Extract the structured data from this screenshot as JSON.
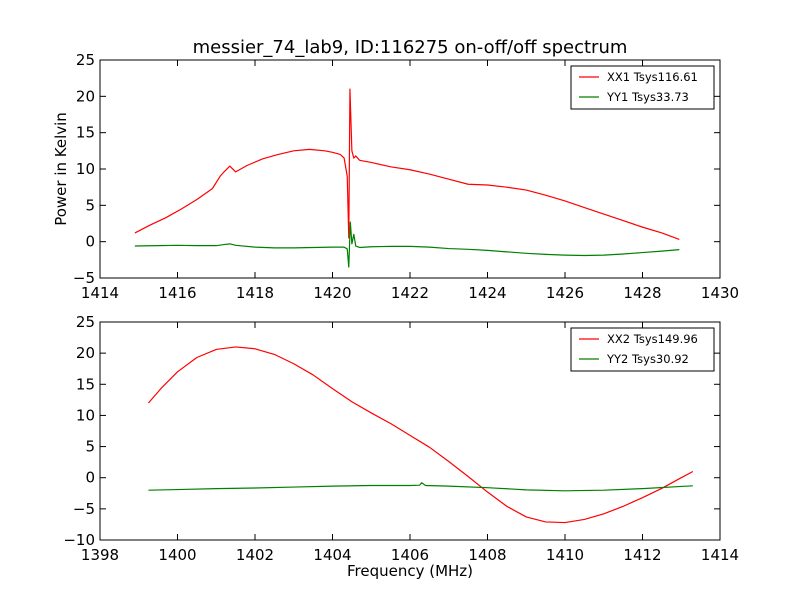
{
  "chart_data": [
    {
      "type": "line",
      "title": "messier_74_lab9, ID:116275 on-off/off spectrum",
      "xlabel": "",
      "ylabel": "Power in Kelvin",
      "xlim": [
        1414,
        1430
      ],
      "ylim": [
        -5,
        25
      ],
      "xticks": [
        1414,
        1416,
        1418,
        1420,
        1422,
        1424,
        1426,
        1428,
        1430
      ],
      "yticks": [
        -5,
        0,
        5,
        10,
        15,
        20,
        25
      ],
      "legend_position": "top-right",
      "grid": false,
      "series": [
        {
          "name": "XX1 Tsys116.61",
          "color": "#ff0000",
          "x": [
            1414.9,
            1415.3,
            1415.7,
            1416.1,
            1416.5,
            1416.9,
            1417.1,
            1417.2,
            1417.35,
            1417.5,
            1417.8,
            1418.2,
            1418.6,
            1419.0,
            1419.4,
            1419.8,
            1420.0,
            1420.2,
            1420.3,
            1420.38,
            1420.42,
            1420.45,
            1420.5,
            1420.55,
            1420.6,
            1420.7,
            1421.0,
            1421.5,
            1422.0,
            1422.5,
            1423.0,
            1423.5,
            1424.0,
            1424.5,
            1425.0,
            1425.5,
            1426.0,
            1426.5,
            1427.0,
            1427.5,
            1428.0,
            1428.5,
            1428.95
          ],
          "values": [
            1.2,
            2.3,
            3.3,
            4.5,
            5.8,
            7.3,
            9.0,
            9.6,
            10.4,
            9.6,
            10.5,
            11.4,
            12.0,
            12.5,
            12.7,
            12.5,
            12.3,
            12.0,
            11.5,
            9.0,
            0.5,
            21.0,
            12.5,
            11.5,
            11.8,
            11.2,
            10.9,
            10.3,
            9.9,
            9.3,
            8.6,
            7.9,
            7.8,
            7.5,
            7.1,
            6.4,
            5.6,
            4.7,
            3.8,
            2.9,
            2.0,
            1.2,
            0.3
          ]
        },
        {
          "name": "YY1 Tsys33.73",
          "color": "#008000",
          "x": [
            1414.9,
            1415.5,
            1416.0,
            1416.5,
            1417.0,
            1417.2,
            1417.35,
            1417.5,
            1418.0,
            1418.5,
            1419.0,
            1419.5,
            1420.0,
            1420.3,
            1420.38,
            1420.42,
            1420.46,
            1420.5,
            1420.55,
            1420.6,
            1420.7,
            1421.0,
            1421.5,
            1422.0,
            1422.5,
            1423.0,
            1423.5,
            1424.0,
            1424.5,
            1425.0,
            1425.5,
            1426.0,
            1426.5,
            1427.0,
            1427.5,
            1428.0,
            1428.5,
            1428.95
          ],
          "values": [
            -0.6,
            -0.55,
            -0.5,
            -0.55,
            -0.55,
            -0.4,
            -0.3,
            -0.5,
            -0.75,
            -0.85,
            -0.85,
            -0.8,
            -0.75,
            -0.75,
            -1.0,
            -3.5,
            2.7,
            -0.3,
            1.0,
            -0.6,
            -0.8,
            -0.7,
            -0.65,
            -0.65,
            -0.75,
            -0.95,
            -1.05,
            -1.2,
            -1.4,
            -1.6,
            -1.75,
            -1.85,
            -1.9,
            -1.85,
            -1.7,
            -1.5,
            -1.3,
            -1.1
          ]
        }
      ]
    },
    {
      "type": "line",
      "title": "",
      "xlabel": "Frequency (MHz)",
      "ylabel": "",
      "xlim": [
        1398,
        1414
      ],
      "ylim": [
        -10,
        25
      ],
      "xticks": [
        1398,
        1400,
        1402,
        1404,
        1406,
        1408,
        1410,
        1412,
        1414
      ],
      "yticks": [
        -10,
        -5,
        0,
        5,
        10,
        15,
        20,
        25
      ],
      "legend_position": "top-right",
      "grid": false,
      "series": [
        {
          "name": "XX2 Tsys149.96",
          "color": "#ff0000",
          "x": [
            1399.25,
            1399.6,
            1400.0,
            1400.5,
            1401.0,
            1401.5,
            1402.0,
            1402.5,
            1403.0,
            1403.5,
            1404.0,
            1404.5,
            1405.0,
            1405.5,
            1406.0,
            1406.5,
            1407.0,
            1407.5,
            1408.0,
            1408.5,
            1409.0,
            1409.5,
            1410.0,
            1410.5,
            1411.0,
            1411.5,
            1412.0,
            1412.5,
            1413.0,
            1413.3
          ],
          "values": [
            12.0,
            14.5,
            17.0,
            19.3,
            20.6,
            21.0,
            20.7,
            19.8,
            18.3,
            16.5,
            14.3,
            12.2,
            10.4,
            8.7,
            6.8,
            4.9,
            2.6,
            0.2,
            -2.3,
            -4.6,
            -6.3,
            -7.1,
            -7.2,
            -6.7,
            -5.8,
            -4.6,
            -3.2,
            -1.7,
            0.0,
            1.0
          ]
        },
        {
          "name": "YY2 Tsys30.92",
          "color": "#008000",
          "x": [
            1399.25,
            1400.0,
            1401.0,
            1402.0,
            1403.0,
            1404.0,
            1405.0,
            1406.0,
            1406.25,
            1406.3,
            1406.4,
            1407.0,
            1408.0,
            1409.0,
            1410.0,
            1411.0,
            1412.0,
            1413.0,
            1413.3
          ],
          "values": [
            -2.0,
            -1.9,
            -1.75,
            -1.65,
            -1.5,
            -1.35,
            -1.25,
            -1.25,
            -1.2,
            -0.8,
            -1.25,
            -1.35,
            -1.6,
            -1.95,
            -2.1,
            -2.0,
            -1.75,
            -1.4,
            -1.3
          ]
        }
      ]
    }
  ]
}
